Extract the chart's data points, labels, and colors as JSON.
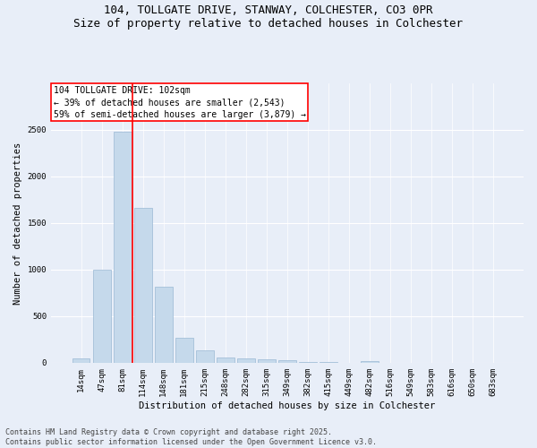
{
  "title1": "104, TOLLGATE DRIVE, STANWAY, COLCHESTER, CO3 0PR",
  "title2": "Size of property relative to detached houses in Colchester",
  "xlabel": "Distribution of detached houses by size in Colchester",
  "ylabel": "Number of detached properties",
  "categories": [
    "14sqm",
    "47sqm",
    "81sqm",
    "114sqm",
    "148sqm",
    "181sqm",
    "215sqm",
    "248sqm",
    "282sqm",
    "315sqm",
    "349sqm",
    "382sqm",
    "415sqm",
    "449sqm",
    "482sqm",
    "516sqm",
    "549sqm",
    "583sqm",
    "616sqm",
    "650sqm",
    "683sqm"
  ],
  "values": [
    50,
    1000,
    2480,
    1660,
    820,
    270,
    130,
    55,
    50,
    35,
    25,
    8,
    4,
    0,
    18,
    0,
    0,
    0,
    0,
    0,
    0
  ],
  "bar_color": "#c5d9eb",
  "bar_edge_color": "#9ab8d4",
  "vline_x": 2.5,
  "vline_color": "red",
  "annotation_text": "104 TOLLGATE DRIVE: 102sqm\n← 39% of detached houses are smaller (2,543)\n59% of semi-detached houses are larger (3,879) →",
  "annotation_box_color": "white",
  "annotation_box_edge_color": "red",
  "ylim": [
    0,
    3000
  ],
  "yticks": [
    0,
    500,
    1000,
    1500,
    2000,
    2500
  ],
  "background_color": "#e8eef8",
  "plot_bg_color": "#e8eef8",
  "footer_line1": "Contains HM Land Registry data © Crown copyright and database right 2025.",
  "footer_line2": "Contains public sector information licensed under the Open Government Licence v3.0.",
  "title_fontsize": 9,
  "axis_label_fontsize": 7.5,
  "tick_fontsize": 6.5,
  "annotation_fontsize": 7,
  "footer_fontsize": 6
}
